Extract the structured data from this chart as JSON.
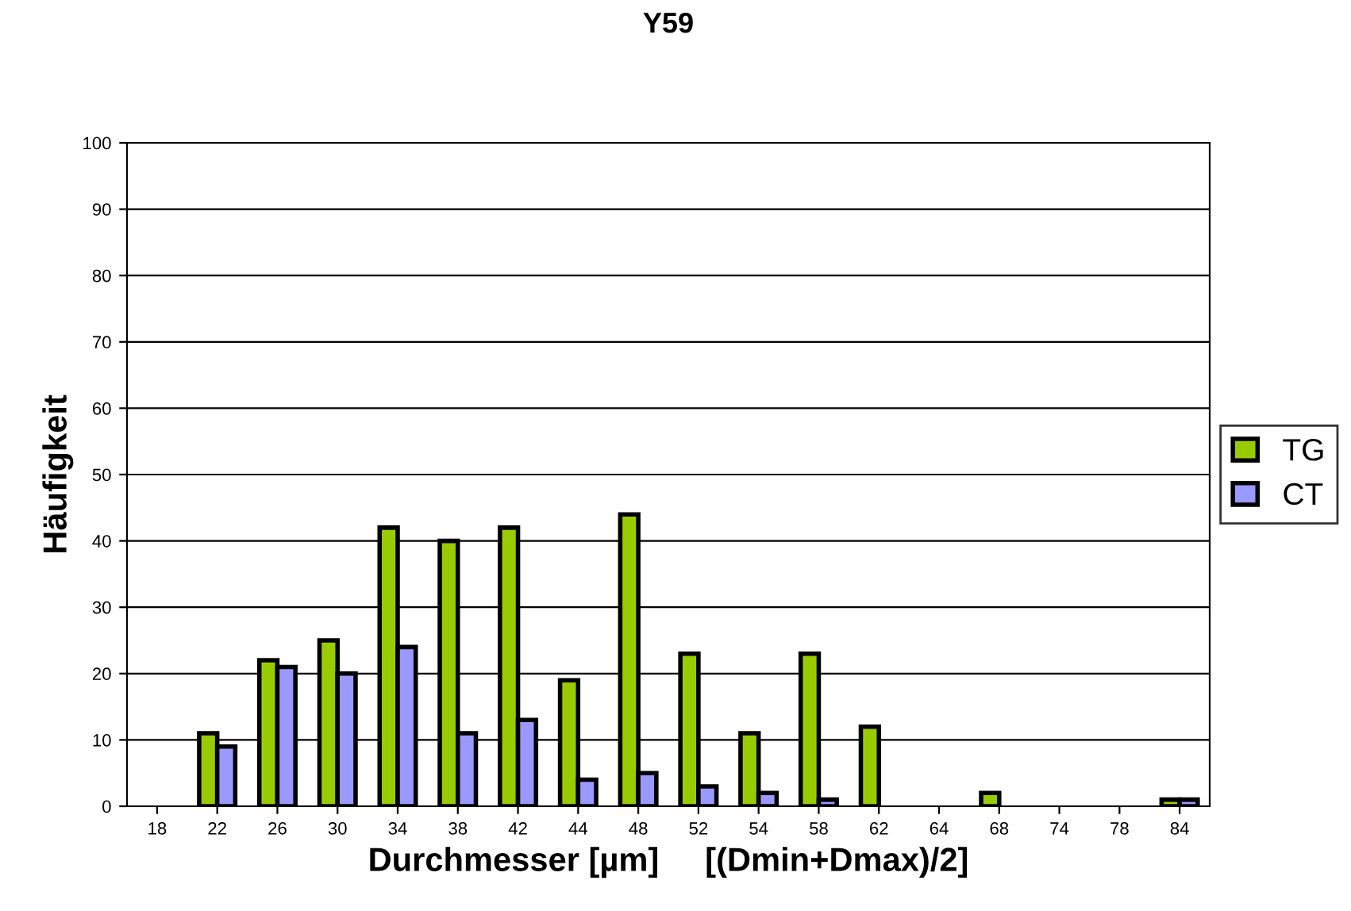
{
  "chart_data": {
    "type": "bar",
    "title": "Y59",
    "xlabel": "Durchmesser [µm]     [(Dmin+Dmax)/2]",
    "ylabel": "Häufigkeit",
    "categories": [
      "18",
      "22",
      "26",
      "30",
      "34",
      "38",
      "42",
      "44",
      "48",
      "52",
      "54",
      "58",
      "62",
      "64",
      "68",
      "74",
      "78",
      "84"
    ],
    "series": [
      {
        "name": "TG",
        "color": "#99cc00",
        "values": [
          0,
          11,
          22,
          25,
          42,
          40,
          42,
          19,
          44,
          23,
          11,
          23,
          12,
          0,
          2,
          0,
          0,
          1
        ]
      },
      {
        "name": "CT",
        "color": "#9999ff",
        "values": [
          0,
          9,
          21,
          20,
          24,
          11,
          13,
          4,
          5,
          3,
          2,
          1,
          0,
          0,
          0,
          0,
          0,
          1
        ]
      }
    ],
    "ylim": [
      0,
      100
    ],
    "yticks": [
      0,
      10,
      20,
      30,
      40,
      50,
      60,
      70,
      80,
      90,
      100
    ],
    "grid": "y",
    "legend": "right"
  }
}
